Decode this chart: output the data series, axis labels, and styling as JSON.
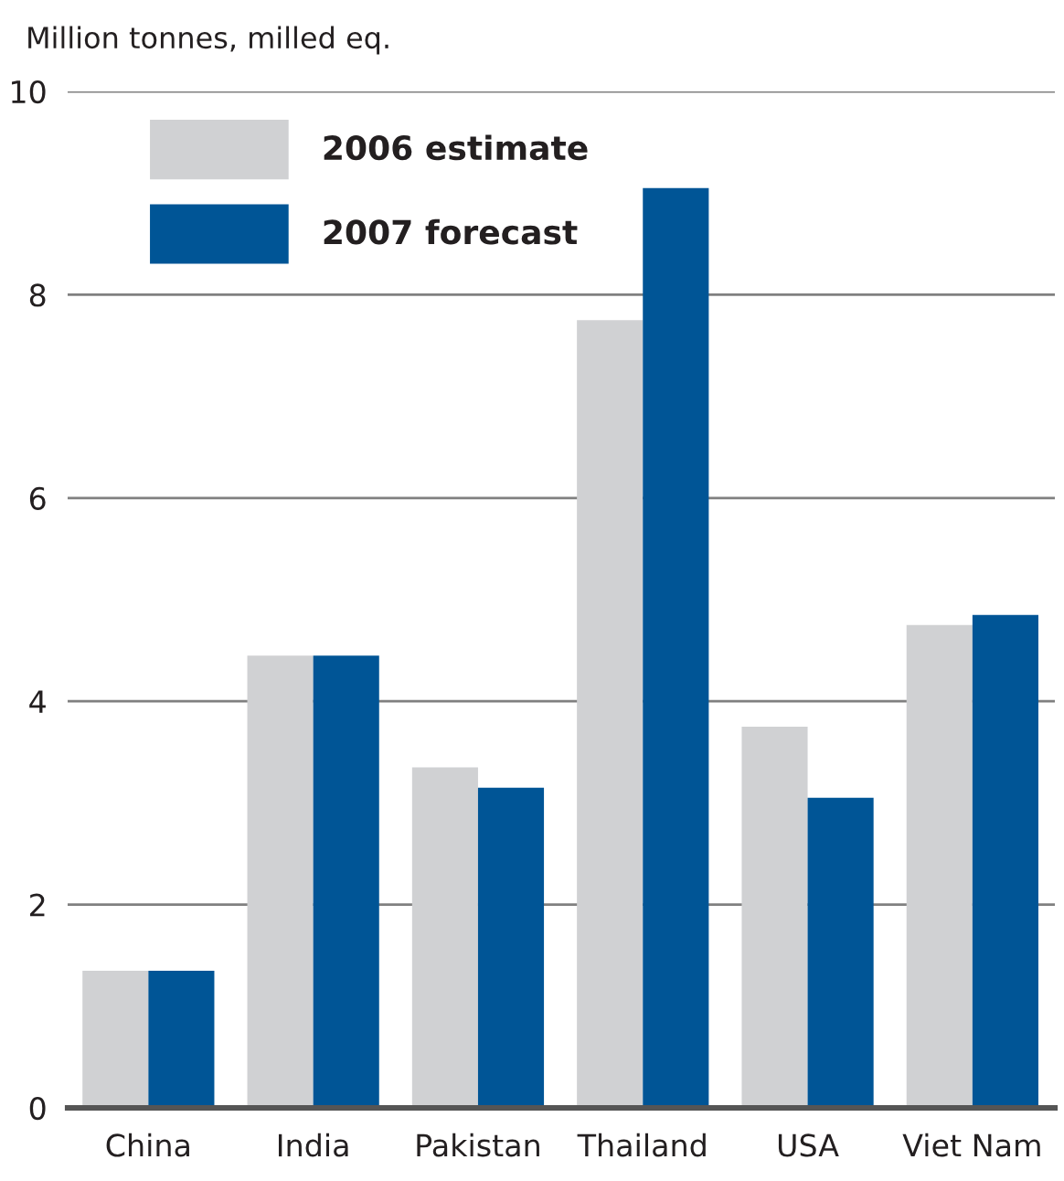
{
  "chart_data": {
    "type": "bar",
    "ylabel": "Million tonnes, milled eq.",
    "categories": [
      "China",
      "India",
      "Pakistan",
      "Thailand",
      "USA",
      "Viet Nam"
    ],
    "series": [
      {
        "name": "2006 estimate",
        "color": "#d0d1d3",
        "values": [
          1.35,
          4.45,
          3.35,
          7.75,
          3.75,
          4.75
        ]
      },
      {
        "name": "2007 forecast",
        "color": "#005596",
        "values": [
          1.35,
          4.45,
          3.15,
          9.05,
          3.05,
          4.85
        ]
      }
    ],
    "ylim": [
      0,
      10
    ],
    "yticks": [
      0,
      2,
      4,
      6,
      8,
      10
    ],
    "grid": "y",
    "legend": "top left"
  }
}
